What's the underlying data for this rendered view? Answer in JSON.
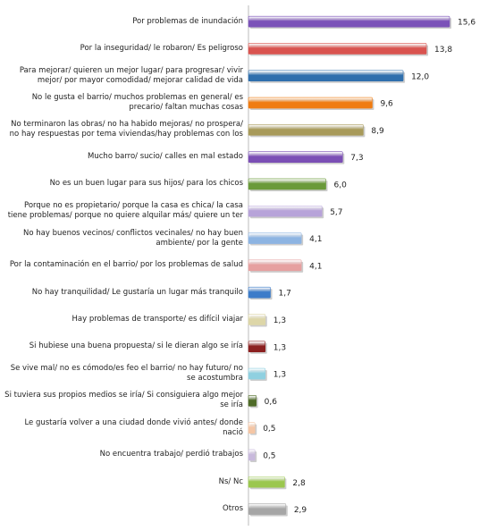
{
  "chart_data": {
    "type": "barh",
    "categories": [
      "Por problemas de inundación",
      "Por la inseguridad/ le robaron/ Es peligroso",
      "Para mejorar/ quieren un mejor lugar/ para progresar/ vivir mejor/ por mayor comodidad/ mejorar calidad de vida",
      "No le gusta el barrio/ muchos problemas en general/ es precario/ faltan muchas cosas",
      "No terminaron las obras/ no ha habido mejoras/ no prospera/ no hay respuestas por tema viviendas/hay problemas con los",
      "Mucho barro/ sucio/ calles en mal estado",
      "No es un buen lugar para sus hijos/ para los chicos",
      "Porque no es propietario/ porque la casa es chica/ la casa tiene problemas/ porque no quiere alquilar más/ quiere un ter",
      "No hay buenos vecinos/ conflictos vecinales/ no hay buen ambiente/ por la gente",
      "Por la contaminación en el barrio/ por los problemas de salud",
      "No hay tranquilidad/ Le gustaría un lugar más tranquilo",
      "Hay problemas de transporte/ es difícil viajar",
      "Si hubiese una buena propuesta/ si le dieran algo se iría",
      "Se vive mal/ no es cómodo/es feo el barrio/ no hay futuro/ no se acostumbra",
      "Si tuviera sus propios medios se iría/ Si consiguiera algo mejor se iría",
      "Le gustaría volver a una ciudad donde vivió antes/ donde nació",
      "No encuentra trabajo/ perdió trabajos",
      "Ns/ Nc",
      "Otros"
    ],
    "values": [
      15.6,
      13.8,
      12.0,
      9.6,
      8.9,
      7.3,
      6.0,
      5.7,
      4.1,
      4.1,
      1.7,
      1.3,
      1.3,
      1.3,
      0.6,
      0.5,
      0.5,
      2.8,
      2.9
    ],
    "value_labels": [
      "15,6",
      "13,8",
      "12,0",
      "9,6",
      "8,9",
      "7,3",
      "6,0",
      "5,7",
      "4,1",
      "4,1",
      "1,7",
      "1,3",
      "1,3",
      "1,3",
      "0,6",
      "0,5",
      "0,5",
      "2,8",
      "2,9"
    ],
    "colors": [
      "#7b52b8",
      "#d9534f",
      "#2f6fad",
      "#f07c12",
      "#a89a5a",
      "#7b4fb5",
      "#6a9a3a",
      "#b7a3d9",
      "#8db4e2",
      "#e6a0a0",
      "#3d7cc9",
      "#ddd6a8",
      "#8b2020",
      "#8fd0e0",
      "#4f6b28",
      "#f5c6a5",
      "#c8b9dc",
      "#9bc74e",
      "#a6a6a6"
    ]
  }
}
